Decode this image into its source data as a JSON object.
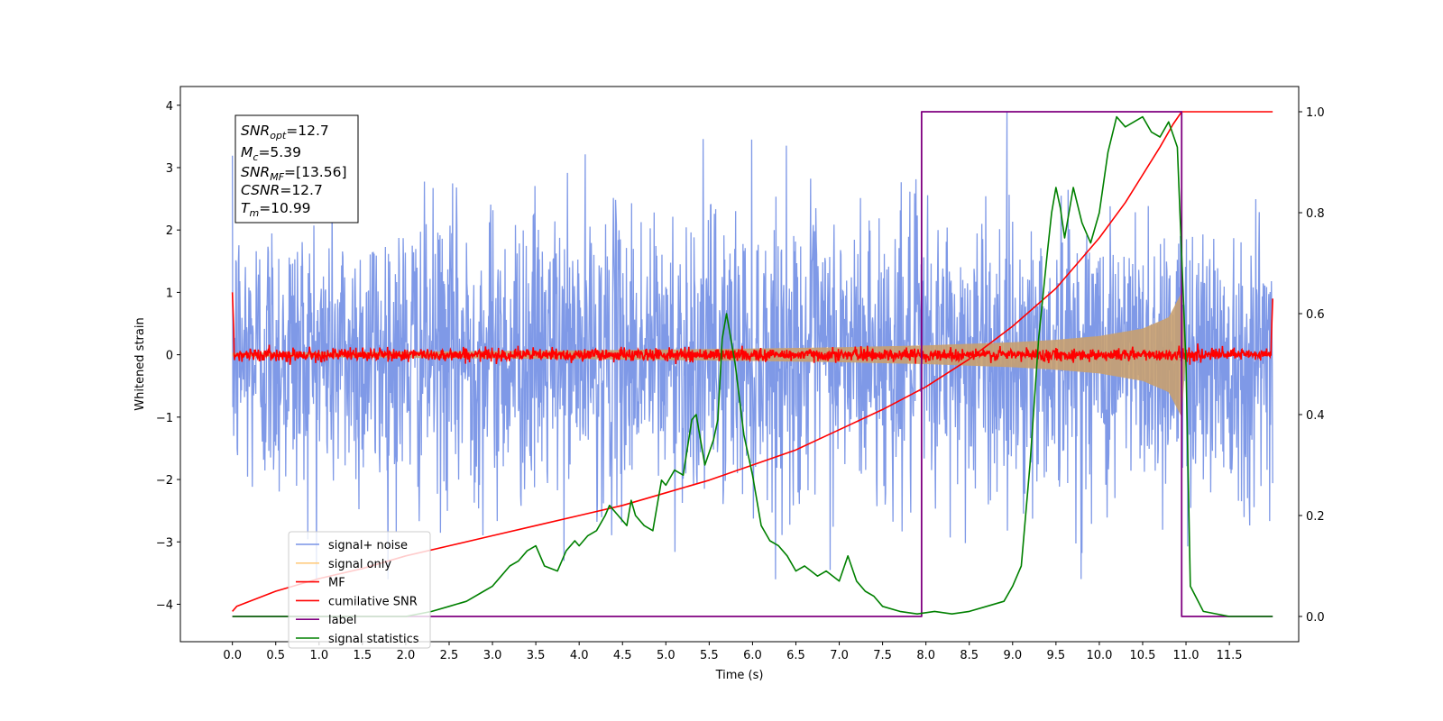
{
  "chart_data": {
    "type": "line",
    "xlabel": "Time (s)",
    "ylabel": "Whitened strain",
    "xlim": [
      -0.6,
      12.3
    ],
    "ylim": [
      -4.6,
      4.3
    ],
    "y2lim": [
      -0.05,
      1.05
    ],
    "x_ticks": [
      "0.0",
      "0.5",
      "1.0",
      "1.5",
      "2.0",
      "2.5",
      "3.0",
      "3.5",
      "4.0",
      "4.5",
      "5.0",
      "5.5",
      "6.0",
      "6.5",
      "7.0",
      "7.5",
      "8.0",
      "8.5",
      "9.0",
      "9.5",
      "10.0",
      "10.5",
      "11.0",
      "11.5"
    ],
    "x_tick_values": [
      0,
      0.5,
      1,
      1.5,
      2,
      2.5,
      3,
      3.5,
      4,
      4.5,
      5,
      5.5,
      6,
      6.5,
      7,
      7.5,
      8,
      8.5,
      9,
      9.5,
      10,
      10.5,
      11,
      11.5
    ],
    "y_ticks": [
      "−4",
      "−3",
      "−2",
      "−1",
      "0",
      "1",
      "2",
      "3",
      "4"
    ],
    "y_tick_values": [
      -4,
      -3,
      -2,
      -1,
      0,
      1,
      2,
      3,
      4
    ],
    "y2_ticks": [
      "0.0",
      "0.2",
      "0.4",
      "0.6",
      "0.8",
      "1.0"
    ],
    "y2_tick_values": [
      0,
      0.2,
      0.4,
      0.6,
      0.8,
      1.0
    ],
    "annotation": {
      "snr_opt": {
        "sym": "SNR",
        "sub": "opt",
        "val": "=12.7"
      },
      "mc": {
        "sym": "M",
        "sub": "c",
        "val": "=5.39"
      },
      "snr_mf": {
        "sym": "SNR",
        "sub": "MF",
        "val": "=[13.56]"
      },
      "csnr": {
        "sym": "CSNR",
        "sub": "",
        "val": "=12.7"
      },
      "tm": {
        "sym": "T",
        "sub": "m",
        "val": "=10.99"
      }
    },
    "legend": {
      "location": "lower left",
      "entries": [
        {
          "label": "signal+ noise",
          "color": "#7893e6"
        },
        {
          "label": "signal only",
          "color": "#ffcc80"
        },
        {
          "label": "MF",
          "color": "#ff0000"
        },
        {
          "label": "cumilative SNR",
          "color": "#ff0000"
        },
        {
          "label": "label",
          "color": "#800080"
        },
        {
          "label": "signal statistics",
          "color": "#008000"
        }
      ]
    },
    "series": [
      {
        "name": "signal+ noise",
        "axis": "left",
        "description": "noise band x 0.0–12.0, typical range ±2.5, peaks up to ±3.9",
        "x_range": [
          0.0,
          12.0
        ],
        "amplitude": 2.6,
        "color": "#7893e6"
      },
      {
        "name": "signal only",
        "axis": "left",
        "description": "chirp envelope growing from 0 to ~1.5 at 11.0 s then zero",
        "envelope_x": [
          0,
          2,
          4,
          6,
          7,
          8,
          9,
          9.5,
          10,
          10.5,
          10.8,
          10.95,
          11.0
        ],
        "envelope_y": [
          0.03,
          0.05,
          0.07,
          0.1,
          0.12,
          0.15,
          0.2,
          0.24,
          0.3,
          0.42,
          0.6,
          1.0,
          0
        ],
        "color": "#ffcc80"
      },
      {
        "name": "MF",
        "axis": "left",
        "description": "flat ~0 with small noise, edge spikes at 0.0 (1.0) and 12.0 (0.9)",
        "x_range": [
          0.0,
          12.0
        ],
        "color": "#ff0000"
      },
      {
        "name": "cumilative SNR",
        "axis": "right",
        "x": [
          0.0,
          0.05,
          0.5,
          1.0,
          1.5,
          2.0,
          2.5,
          3.0,
          3.5,
          4.0,
          4.5,
          5.0,
          5.5,
          6.0,
          6.5,
          7.0,
          7.5,
          8.0,
          8.5,
          9.0,
          9.5,
          10.0,
          10.3,
          10.5,
          10.7,
          10.85,
          10.95,
          11.0,
          12.0
        ],
        "y": [
          0.01,
          0.02,
          0.05,
          0.075,
          0.095,
          0.12,
          0.14,
          0.16,
          0.18,
          0.2,
          0.22,
          0.245,
          0.27,
          0.3,
          0.33,
          0.37,
          0.41,
          0.455,
          0.51,
          0.575,
          0.65,
          0.75,
          0.82,
          0.875,
          0.93,
          0.975,
          1.0,
          1.0,
          1.0
        ]
      },
      {
        "name": "label",
        "axis": "right",
        "x": [
          0.0,
          7.95,
          7.95,
          10.95,
          10.95,
          12.0
        ],
        "y": [
          0,
          0,
          1,
          1,
          0,
          0
        ]
      },
      {
        "name": "signal statistics",
        "axis": "right",
        "x": [
          0.0,
          0.5,
          1.0,
          1.5,
          2.0,
          2.3,
          2.5,
          2.7,
          2.9,
          3.0,
          3.1,
          3.2,
          3.3,
          3.4,
          3.5,
          3.6,
          3.75,
          3.85,
          3.95,
          4.0,
          4.1,
          4.2,
          4.3,
          4.35,
          4.45,
          4.55,
          4.6,
          4.65,
          4.75,
          4.85,
          4.95,
          5.0,
          5.1,
          5.2,
          5.3,
          5.35,
          5.45,
          5.55,
          5.6,
          5.65,
          5.7,
          5.8,
          5.9,
          6.0,
          6.1,
          6.2,
          6.3,
          6.4,
          6.5,
          6.6,
          6.75,
          6.85,
          7.0,
          7.1,
          7.2,
          7.3,
          7.4,
          7.5,
          7.7,
          7.9,
          8.1,
          8.3,
          8.5,
          8.7,
          8.9,
          9.0,
          9.1,
          9.2,
          9.3,
          9.4,
          9.45,
          9.5,
          9.55,
          9.6,
          9.7,
          9.8,
          9.9,
          10.0,
          10.1,
          10.2,
          10.3,
          10.4,
          10.5,
          10.6,
          10.7,
          10.8,
          10.9,
          11.0,
          11.05,
          11.2,
          11.5,
          12.0
        ],
        "y": [
          0.0,
          0.0,
          0.0,
          0.0,
          0.0,
          0.01,
          0.02,
          0.03,
          0.05,
          0.06,
          0.08,
          0.1,
          0.11,
          0.13,
          0.14,
          0.1,
          0.09,
          0.13,
          0.15,
          0.14,
          0.16,
          0.17,
          0.2,
          0.22,
          0.2,
          0.18,
          0.23,
          0.2,
          0.18,
          0.17,
          0.27,
          0.26,
          0.29,
          0.28,
          0.39,
          0.4,
          0.3,
          0.35,
          0.39,
          0.55,
          0.6,
          0.5,
          0.36,
          0.28,
          0.18,
          0.15,
          0.14,
          0.12,
          0.09,
          0.1,
          0.08,
          0.09,
          0.07,
          0.12,
          0.07,
          0.05,
          0.04,
          0.02,
          0.01,
          0.005,
          0.01,
          0.005,
          0.01,
          0.02,
          0.03,
          0.06,
          0.1,
          0.3,
          0.55,
          0.72,
          0.8,
          0.85,
          0.81,
          0.75,
          0.85,
          0.78,
          0.74,
          0.8,
          0.92,
          0.99,
          0.97,
          0.98,
          0.99,
          0.96,
          0.95,
          0.98,
          0.93,
          0.5,
          0.06,
          0.01,
          0.0,
          0.0
        ]
      }
    ]
  }
}
